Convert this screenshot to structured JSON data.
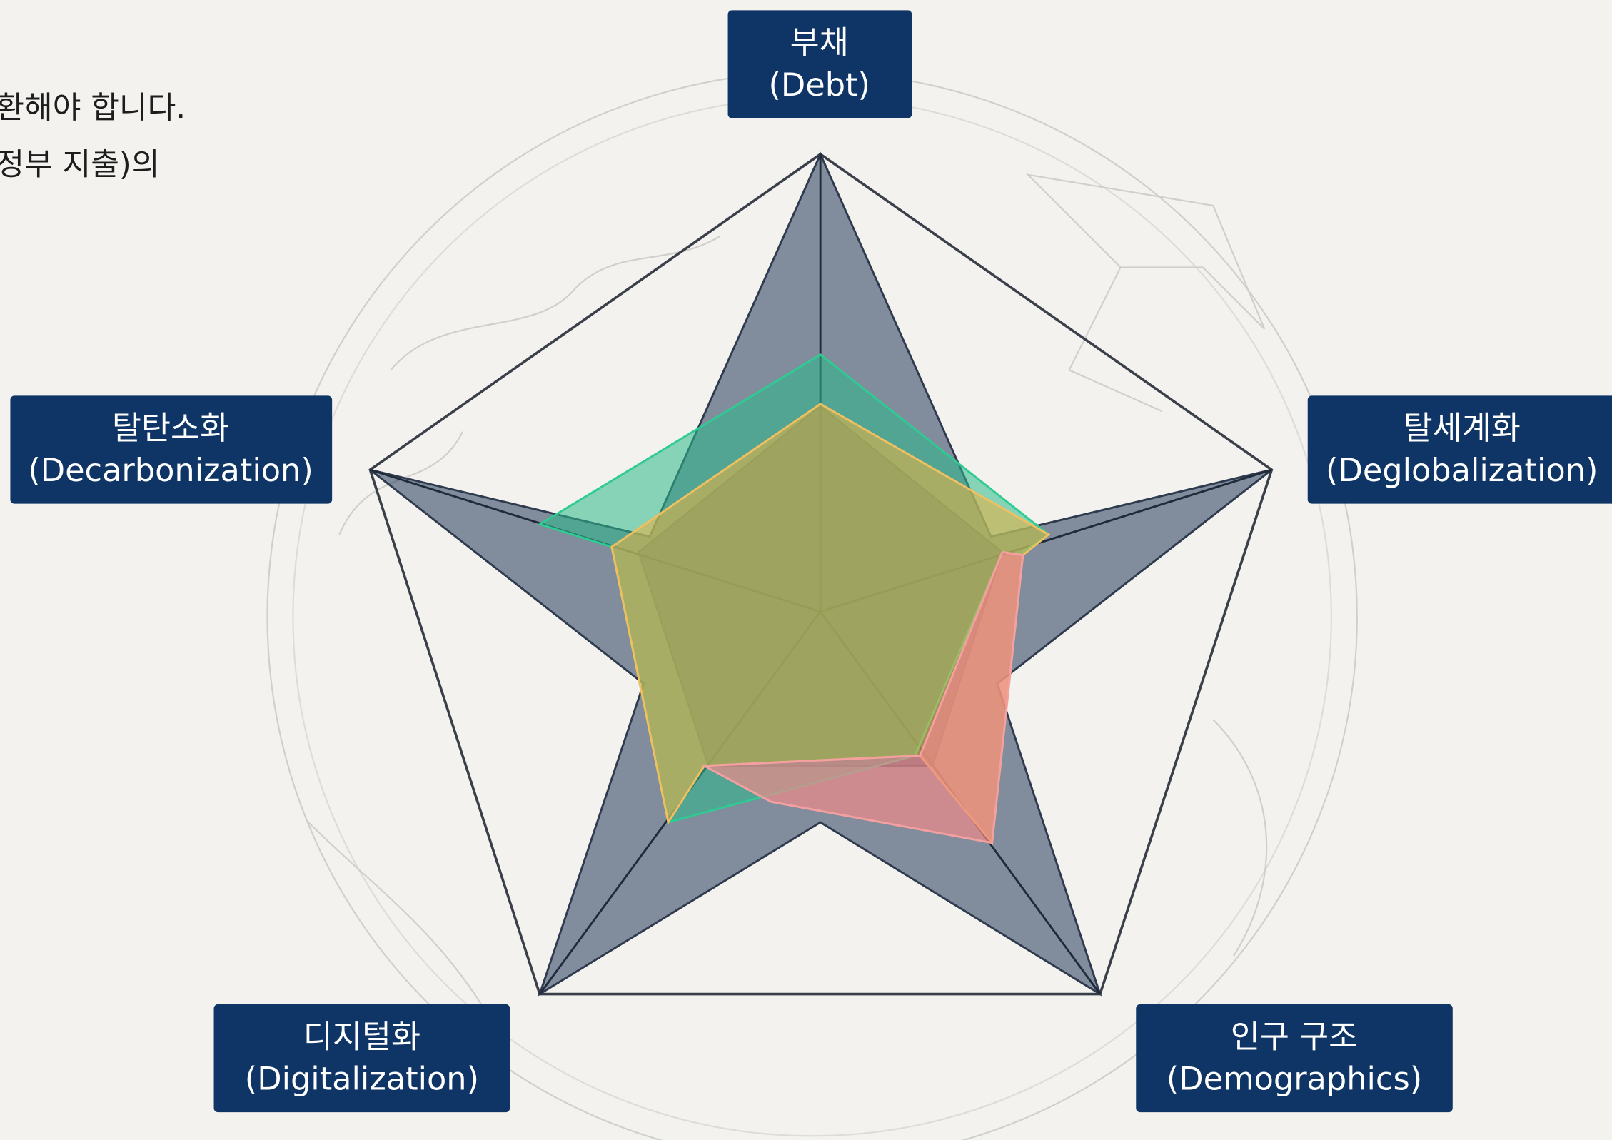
{
  "intro_lines": [
    "환해야 합니다.",
    "정부 지출)의"
  ],
  "axes": [
    {
      "label": "부채",
      "sublabel": "(Debt)"
    },
    {
      "label": "탈세계화",
      "sublabel": "(Deglobalization)"
    },
    {
      "label": "인구 구조",
      "sublabel": "(Demographics)"
    },
    {
      "label": "디지털화",
      "sublabel": "(Digitalization)"
    },
    {
      "label": "탈탄소화",
      "sublabel": "(Decarbonization)"
    }
  ]
}
